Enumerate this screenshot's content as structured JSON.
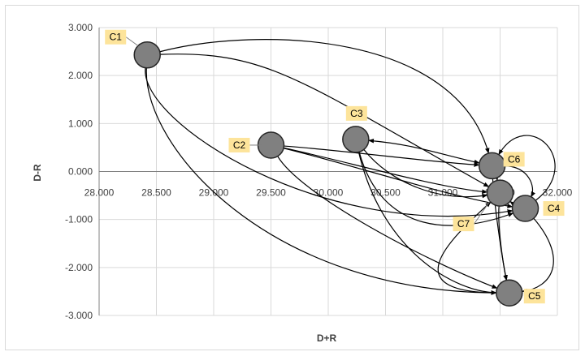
{
  "chart_data": {
    "type": "scatter",
    "title": "",
    "xlabel": "D+R",
    "ylabel": "D-R",
    "xlim": [
      28.0,
      32.0
    ],
    "ylim": [
      -3.0,
      3.0
    ],
    "x_ticks": [
      "28.000",
      "28.500",
      "29.000",
      "29.500",
      "30.000",
      "30.500",
      "31.000",
      "31.500",
      "32.000"
    ],
    "y_ticks": [
      "3.000",
      "2.000",
      "1.000",
      "0.000",
      "-1.000",
      "-2.000",
      "-3.000"
    ],
    "grid": true,
    "legend": "none",
    "points": [
      {
        "label": "C1",
        "x": 28.42,
        "y": 2.43
      },
      {
        "label": "C2",
        "x": 29.5,
        "y": 0.55
      },
      {
        "label": "C3",
        "x": 30.24,
        "y": 0.67
      },
      {
        "label": "C4",
        "x": 31.72,
        "y": -0.77
      },
      {
        "label": "C5",
        "x": 31.58,
        "y": -2.53
      },
      {
        "label": "C6",
        "x": 31.43,
        "y": 0.12
      },
      {
        "label": "C7",
        "x": 31.5,
        "y": -0.45
      }
    ],
    "relations": [
      {
        "from": "C1",
        "to": "C6"
      },
      {
        "from": "C1",
        "to": "C7"
      },
      {
        "from": "C1",
        "to": "C4"
      },
      {
        "from": "C1",
        "to": "C5"
      },
      {
        "from": "C2",
        "to": "C6"
      },
      {
        "from": "C2",
        "to": "C7"
      },
      {
        "from": "C2",
        "to": "C4"
      },
      {
        "from": "C2",
        "to": "C5"
      },
      {
        "from": "C3",
        "to": "C6",
        "bidirectional": true
      },
      {
        "from": "C3",
        "to": "C7"
      },
      {
        "from": "C3",
        "to": "C4"
      },
      {
        "from": "C3",
        "to": "C5"
      },
      {
        "from": "C6",
        "to": "C7"
      },
      {
        "from": "C6",
        "to": "C4"
      },
      {
        "from": "C7",
        "to": "C4",
        "bidirectional": true
      },
      {
        "from": "C4",
        "to": "C6"
      },
      {
        "from": "C6",
        "to": "C5"
      },
      {
        "from": "C7",
        "to": "C5"
      },
      {
        "from": "C4",
        "to": "C5"
      },
      {
        "from": "C5",
        "to": "C7"
      }
    ],
    "colors": {
      "node_fill": "#808080",
      "node_stroke": "#262626",
      "label_bg": "#fde49b",
      "grid": "#d9d9d9",
      "axis": "#808080",
      "edge": "#000000"
    }
  }
}
